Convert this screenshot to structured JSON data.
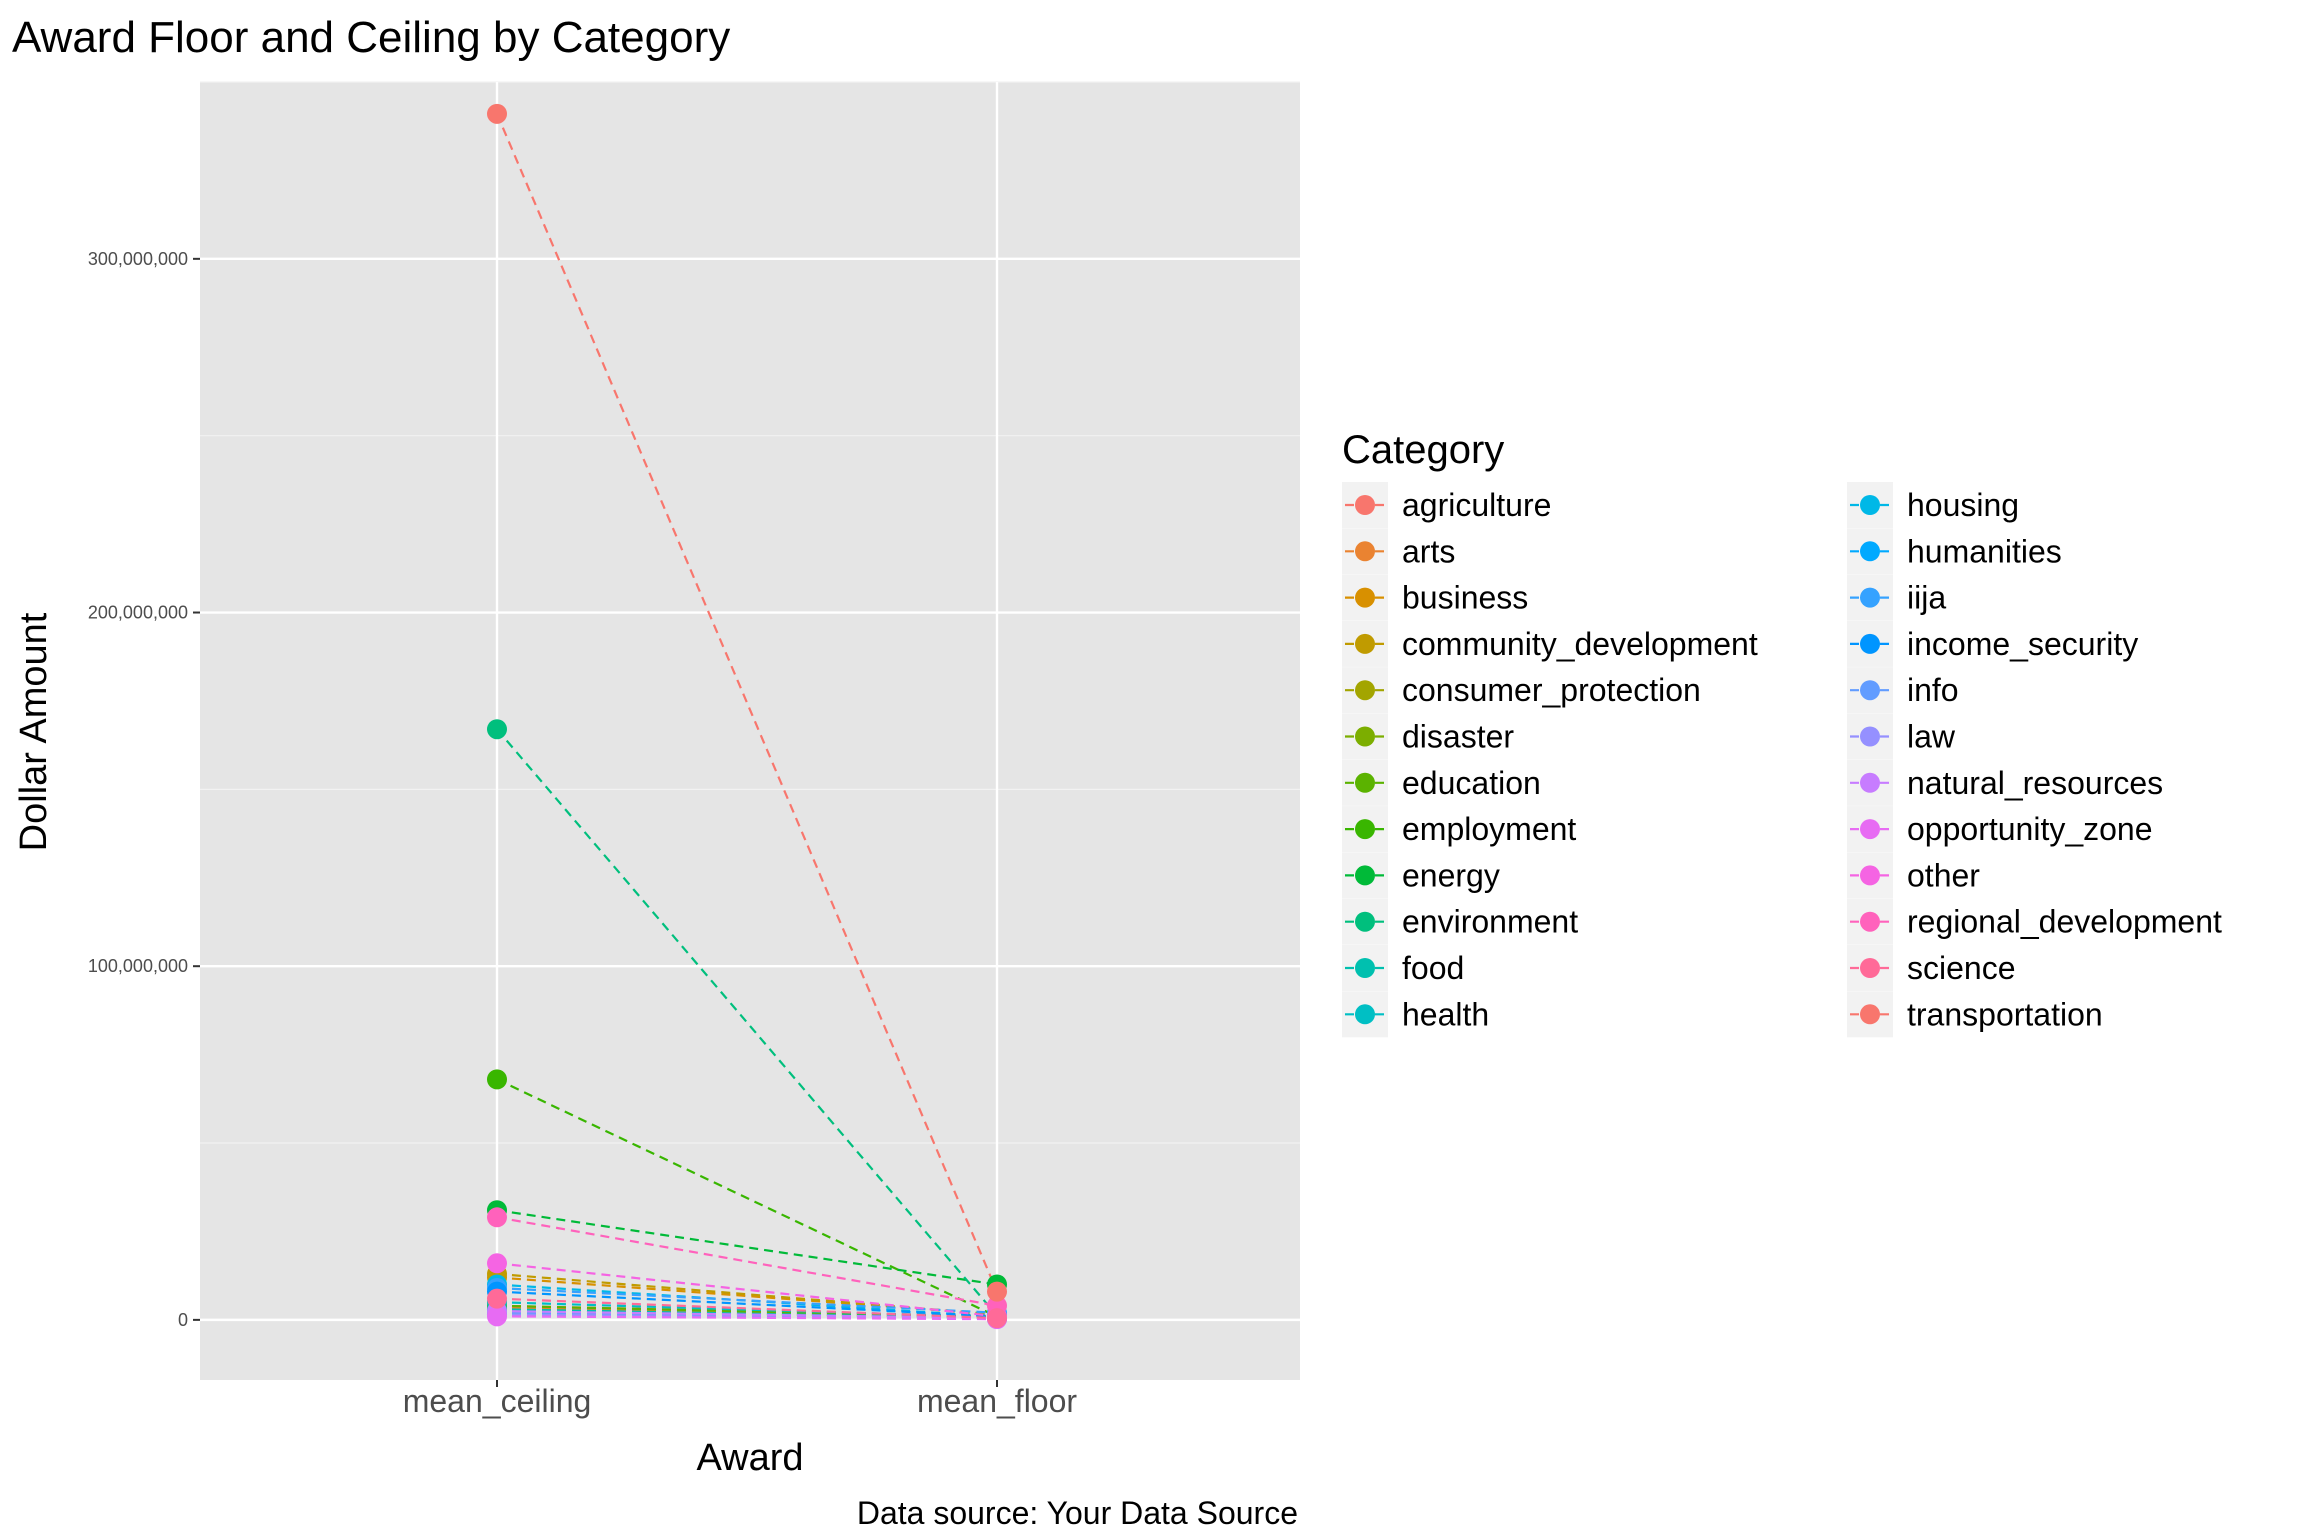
{
  "chart_data": {
    "type": "line",
    "title": "Award Floor and Ceiling by Category",
    "xlabel": "Award",
    "ylabel": "Dollar Amount",
    "caption": "Data source: Your Data Source",
    "categories": [
      "mean_ceiling",
      "mean_floor"
    ],
    "ylim": [
      -17000000,
      350000000
    ],
    "yticks": [
      0,
      100000000,
      200000000,
      300000000
    ],
    "ytick_labels": [
      "0",
      "100,000,000",
      "200,000,000",
      "300,000,000"
    ],
    "grid": true,
    "line_style": "dashed",
    "legend": {
      "title": "Category",
      "placement": "right",
      "columns": 2
    },
    "series": [
      {
        "name": "agriculture",
        "color": "#F8766D",
        "values": [
          4000000,
          1000000
        ]
      },
      {
        "name": "arts",
        "color": "#EA8331",
        "values": [
          3500000,
          600000
        ]
      },
      {
        "name": "business",
        "color": "#D89000",
        "values": [
          12000000,
          1500000
        ]
      },
      {
        "name": "community_development",
        "color": "#C09B00",
        "values": [
          13000000,
          1500000
        ]
      },
      {
        "name": "consumer_protection",
        "color": "#A3A500",
        "values": [
          3000000,
          500000
        ]
      },
      {
        "name": "disaster",
        "color": "#7CAE00",
        "values": [
          2500000,
          700000
        ]
      },
      {
        "name": "education",
        "color": "#5BB300",
        "values": [
          4000000,
          800000
        ]
      },
      {
        "name": "employment",
        "color": "#39B600",
        "values": [
          68000000,
          900000
        ]
      },
      {
        "name": "energy",
        "color": "#00BA38",
        "values": [
          31000000,
          10000000
        ]
      },
      {
        "name": "environment",
        "color": "#00BF7D",
        "values": [
          167000000,
          1200000
        ]
      },
      {
        "name": "food",
        "color": "#00C0AF",
        "values": [
          3000000,
          500000
        ]
      },
      {
        "name": "health",
        "color": "#00BFC4",
        "values": [
          5000000,
          800000
        ]
      },
      {
        "name": "housing",
        "color": "#00B8E7",
        "values": [
          10000000,
          900000
        ]
      },
      {
        "name": "humanities",
        "color": "#00A9FF",
        "values": [
          1500000,
          300000
        ]
      },
      {
        "name": "iija",
        "color": "#35A2FF",
        "values": [
          9000000,
          2000000
        ]
      },
      {
        "name": "income_security",
        "color": "#0095FF",
        "values": [
          8000000,
          1000000
        ]
      },
      {
        "name": "info",
        "color": "#619CFF",
        "values": [
          2000000,
          400000
        ]
      },
      {
        "name": "law",
        "color": "#9590FF",
        "values": [
          1500000,
          300000
        ]
      },
      {
        "name": "natural_resources",
        "color": "#C77CFF",
        "values": [
          2500000,
          500000
        ]
      },
      {
        "name": "opportunity_zone",
        "color": "#E76BF3",
        "values": [
          1000000,
          200000
        ]
      },
      {
        "name": "other",
        "color": "#F564E3",
        "values": [
          16000000,
          1000000
        ]
      },
      {
        "name": "regional_development",
        "color": "#FF62BC",
        "values": [
          29000000,
          4000000
        ]
      },
      {
        "name": "science",
        "color": "#FF6A98",
        "values": [
          6000000,
          500000
        ]
      },
      {
        "name": "transportation",
        "color": "#F8766D",
        "values": [
          341000000,
          8000000
        ]
      }
    ]
  }
}
